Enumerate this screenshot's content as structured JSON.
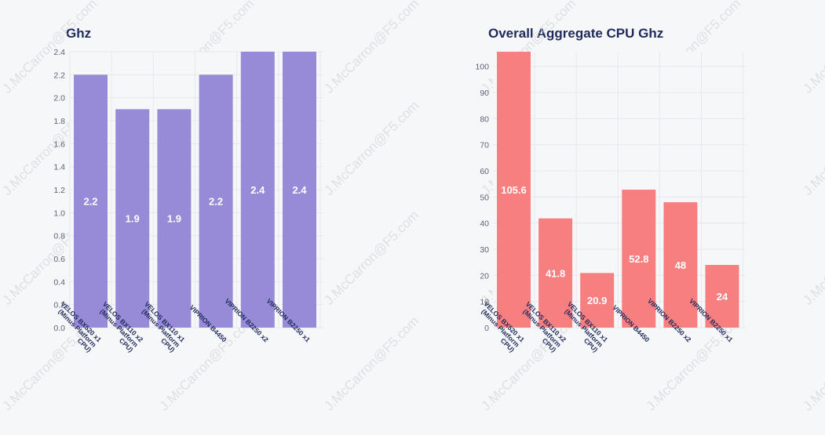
{
  "watermark": "J.McCarron@F5.com",
  "colors": {
    "background": "#f6f7f9",
    "grid": "#e6e8ee",
    "left_bar": "#978bd8",
    "right_bar": "#f77f80",
    "title": "#1f2a5a"
  },
  "chart_data": [
    {
      "type": "bar",
      "title": "Ghz",
      "categories": [
        [
          "VELOS BX520 x1",
          "(Minus Platform",
          "CPU)"
        ],
        [
          "VELOS BX110 x2",
          "(Minus Platform",
          "CPU)"
        ],
        [
          "VELOS BX110 x1",
          "(Minus Platform",
          "CPU)"
        ],
        [
          "VIPRION B4450"
        ],
        [
          "VIPRION B2250 x2"
        ],
        [
          "VIPRION B2250 x1"
        ]
      ],
      "values": [
        2.2,
        1.9,
        1.9,
        2.2,
        2.4,
        2.4
      ],
      "value_labels": [
        "2.2",
        "1.9",
        "1.9",
        "2.2",
        "2.4",
        "2.4"
      ],
      "yticks": [
        "0.0",
        "0.2",
        "0.4",
        "0.6",
        "0.8",
        "1.0",
        "1.2",
        "1.4",
        "1.6",
        "1.8",
        "2.0",
        "2.2",
        "2.4"
      ],
      "ylim": [
        0,
        2.4
      ],
      "grid": true,
      "color": "#978bd8"
    },
    {
      "type": "bar",
      "title": "Overall Aggregate CPU Ghz",
      "categories": [
        [
          "VELOS BX520 x1",
          "(Minus Platform",
          "CPU)"
        ],
        [
          "VELOS BX110 x2",
          "(Minus Platform",
          "CPU)"
        ],
        [
          "VELOS BX110 x1",
          "(Minus Platform",
          "CPU)"
        ],
        [
          "VIPRION B4450"
        ],
        [
          "VIPRION B2250 x2"
        ],
        [
          "VIPRION B2250 x1"
        ]
      ],
      "values": [
        105.6,
        41.8,
        20.9,
        52.8,
        48,
        24
      ],
      "value_labels": [
        "105.6",
        "41.8",
        "20.9",
        "52.8",
        "48",
        "24"
      ],
      "yticks": [
        "0",
        "10",
        "20",
        "30",
        "40",
        "50",
        "60",
        "70",
        "80",
        "90",
        "100"
      ],
      "ylim": [
        0,
        105.6
      ],
      "grid": true,
      "color": "#f77f80"
    }
  ]
}
